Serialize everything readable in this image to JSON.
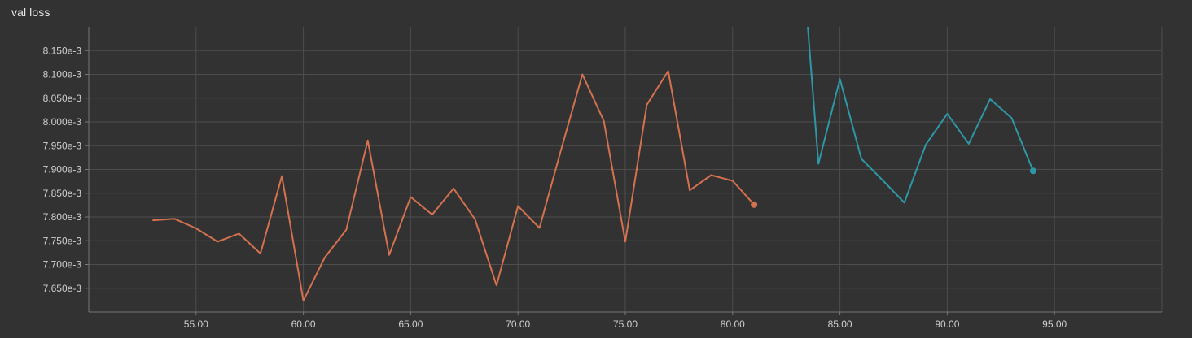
{
  "panel": {
    "title": "val loss"
  },
  "colors": {
    "background": "#323232",
    "grid": "#4d4d4d",
    "axis": "#777777",
    "series_orange": "#d4714f",
    "series_teal": "#2e97a5"
  },
  "chart_data": {
    "type": "line",
    "title": "val loss",
    "xlabel": "",
    "ylabel": "",
    "xlim": [
      50,
      100
    ],
    "ylim": [
      7.6,
      8.2
    ],
    "grid": true,
    "x_ticks": [
      55,
      60,
      65,
      70,
      75,
      80,
      85,
      90,
      95
    ],
    "x_tick_labels": [
      "55.00",
      "60.00",
      "65.00",
      "70.00",
      "75.00",
      "80.00",
      "85.00",
      "90.00",
      "95.00"
    ],
    "y_ticks": [
      7.65,
      7.7,
      7.75,
      7.8,
      7.85,
      7.9,
      7.95,
      8.0,
      8.05,
      8.1,
      8.15
    ],
    "y_tick_labels": [
      "7.650e-3",
      "7.700e-3",
      "7.750e-3",
      "7.800e-3",
      "7.850e-3",
      "7.900e-3",
      "7.950e-3",
      "8.000e-3",
      "8.050e-3",
      "8.100e-3",
      "8.150e-3"
    ],
    "series": [
      {
        "color": "#d4714f",
        "x": [
          53,
          54,
          55,
          56,
          57,
          58,
          59,
          60,
          61,
          62,
          63,
          64,
          65,
          66,
          67,
          68,
          69,
          70,
          71,
          72,
          73,
          74,
          75,
          76,
          77,
          78,
          79,
          80,
          81
        ],
        "y": [
          7.793,
          7.796,
          7.776,
          7.748,
          7.765,
          7.723,
          7.886,
          7.624,
          7.715,
          7.773,
          7.961,
          7.72,
          7.842,
          7.805,
          7.86,
          7.795,
          7.656,
          7.823,
          7.777,
          7.94,
          8.1,
          8.002,
          7.748,
          8.036,
          8.107,
          7.856,
          7.888,
          7.876,
          7.826
        ]
      },
      {
        "color": "#2e97a5",
        "x": [
          83.5,
          84,
          85,
          86,
          87,
          88,
          89,
          90,
          91,
          92,
          93,
          94
        ],
        "y": [
          8.2,
          7.912,
          8.09,
          7.922,
          7.877,
          7.83,
          7.952,
          8.017,
          7.954,
          8.048,
          8.008,
          7.897
        ]
      }
    ]
  }
}
